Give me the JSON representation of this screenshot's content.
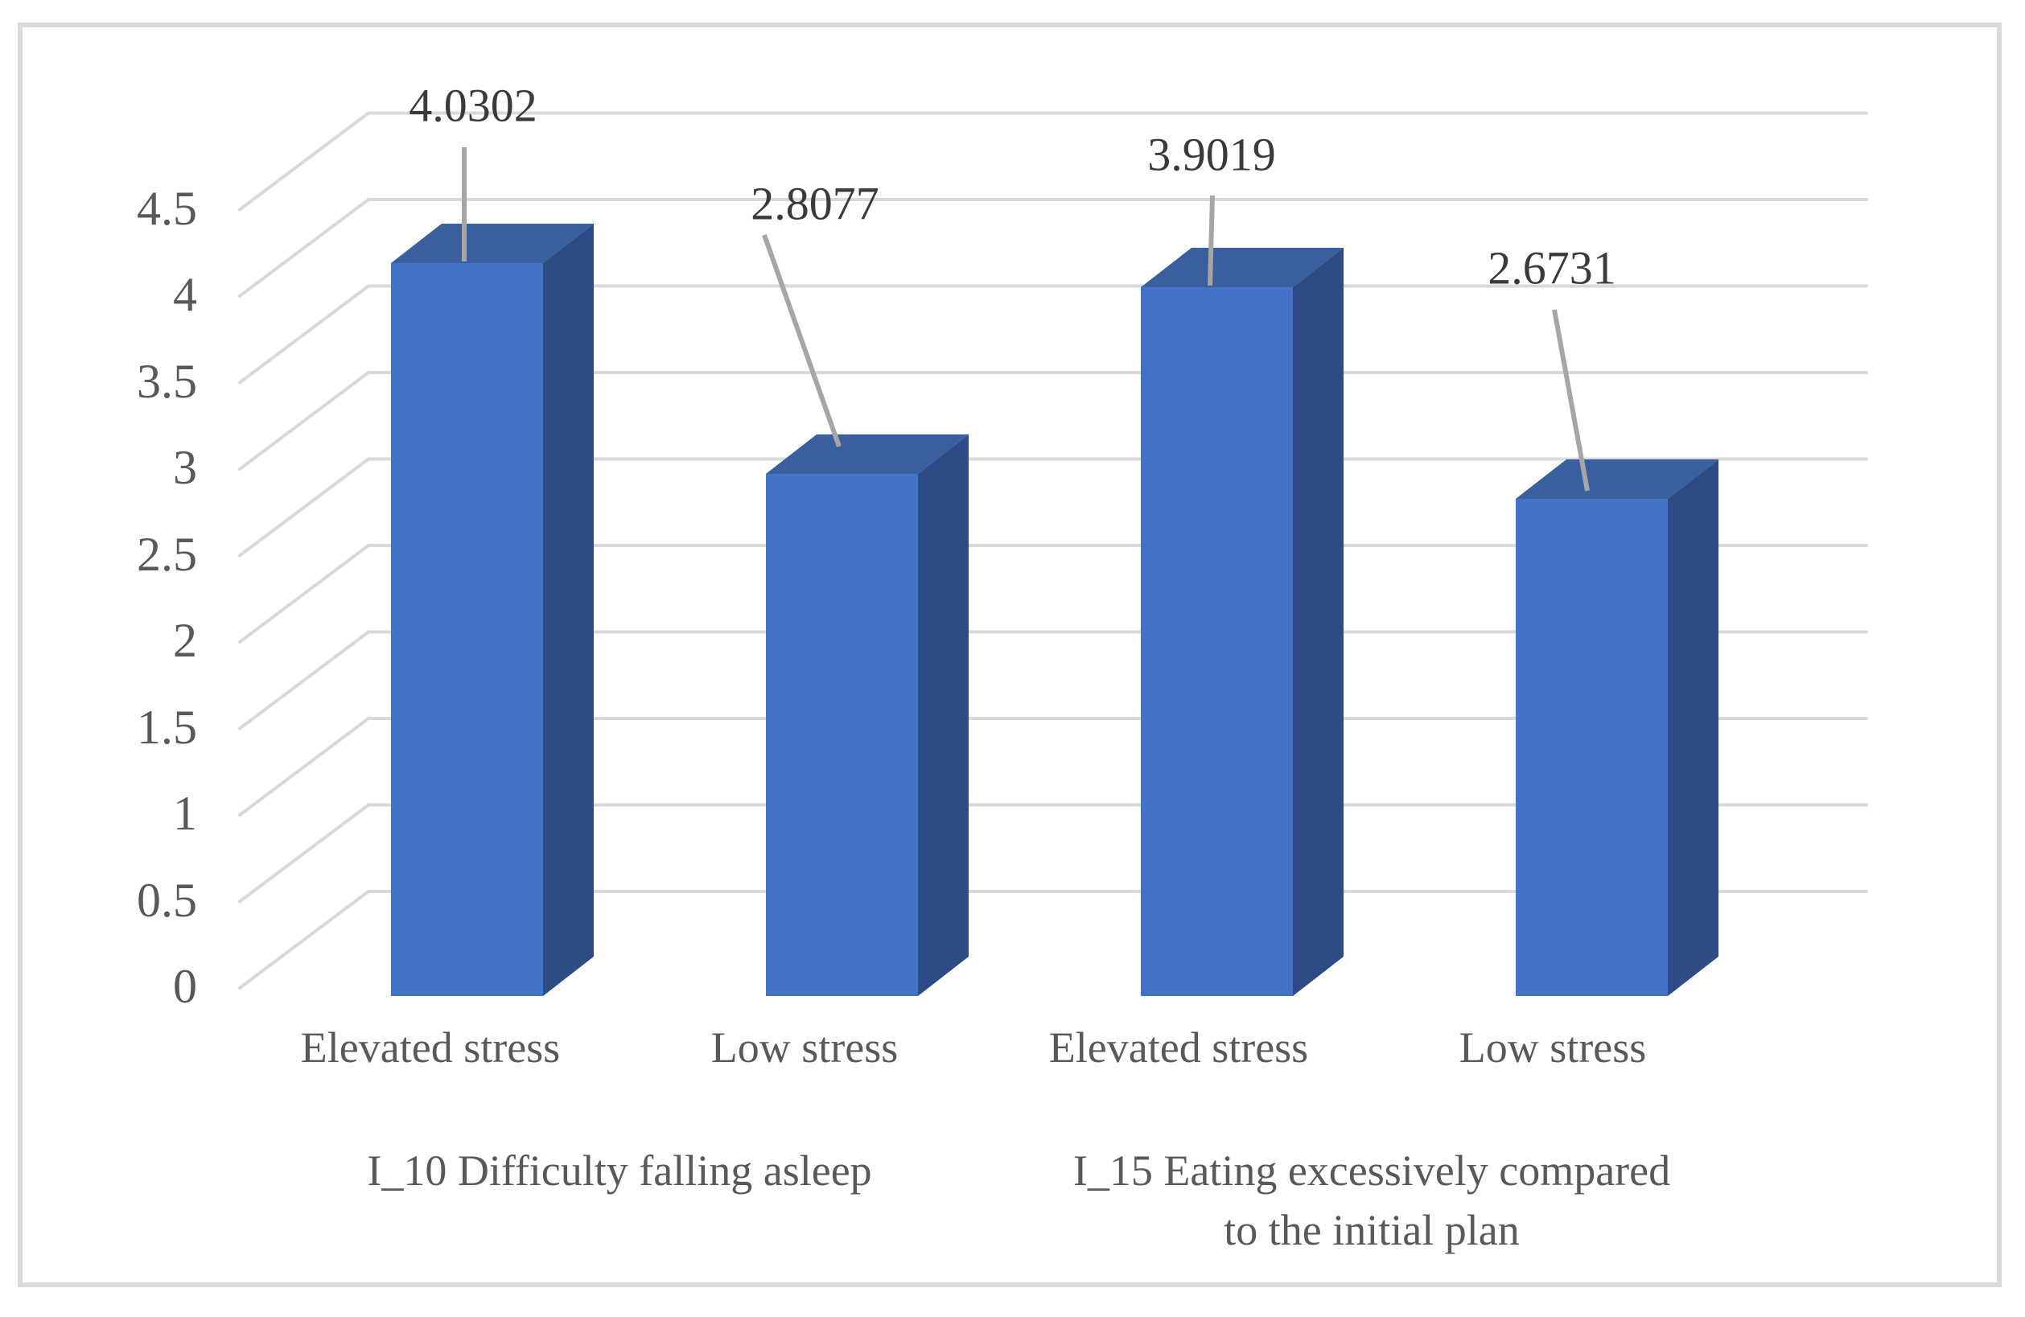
{
  "chart_data": {
    "type": "bar",
    "subtype": "3d-column",
    "title": "",
    "xlabel": "",
    "ylabel": "",
    "categories": [
      "Elevated stress",
      "Low stress",
      "Elevated stress",
      "Low stress"
    ],
    "values": [
      4.0302,
      2.8077,
      3.9019,
      2.6731
    ],
    "data_labels": [
      "4.0302",
      "2.8077",
      "3.9019",
      "2.6731"
    ],
    "group_labels": [
      {
        "lines": [
          "I_10 Difficulty falling asleep"
        ]
      },
      {
        "lines": [
          "I_15 Eating excessively compared",
          "to the initial plan"
        ]
      }
    ],
    "yticks": [
      "0",
      "0.5",
      "1",
      "1.5",
      "2",
      "2.5",
      "3",
      "3.5",
      "4",
      "4.5"
    ],
    "ylim": [
      0,
      4.5
    ],
    "ytick_step": 0.5,
    "grid": true,
    "legend": "none"
  },
  "colors": {
    "bar_front": "#4472C4",
    "bar_top": "#3A5F9E",
    "bar_side": "#2D4C85",
    "gridline": "#D9D9D9",
    "frame_border": "#D9D9D9",
    "leader_line": "#A6A6A6",
    "axis_text": "#595959",
    "data_label_text": "#3A3A3A",
    "background": "#FFFFFF"
  }
}
